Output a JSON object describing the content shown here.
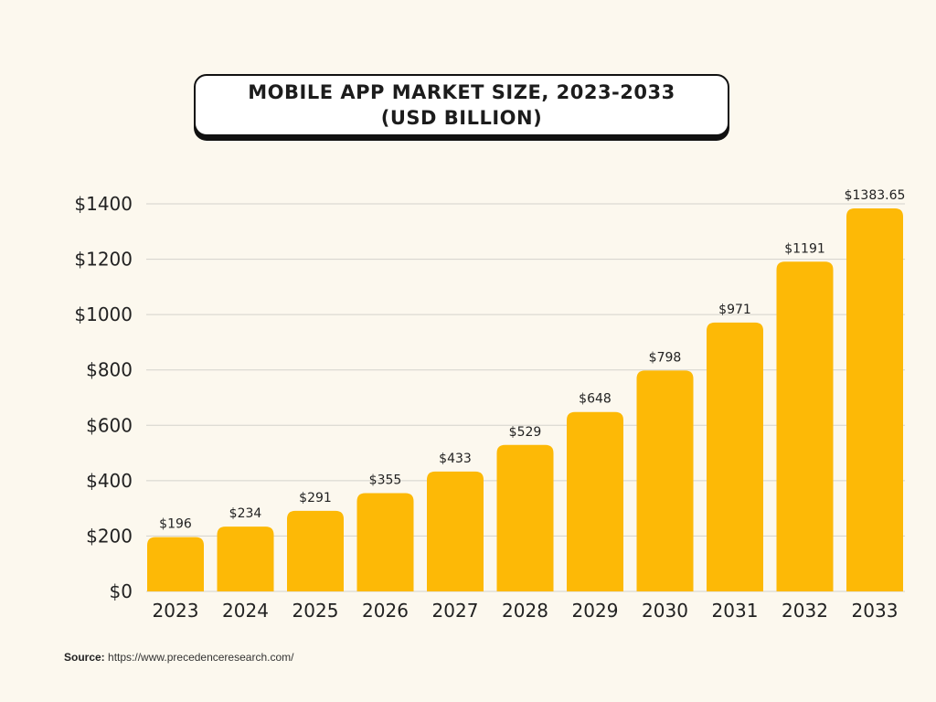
{
  "chart_data": {
    "type": "bar",
    "title": "MOBILE APP MARKET SIZE, 2023-2033\n(USD BILLION)",
    "categories": [
      "2023",
      "2024",
      "2025",
      "2026",
      "2027",
      "2028",
      "2029",
      "2030",
      "2031",
      "2032",
      "2033"
    ],
    "values": [
      196,
      234,
      291,
      355,
      433,
      529,
      648,
      798,
      971,
      1191,
      1383.65
    ],
    "data_labels": [
      "$196",
      "$234",
      "$291",
      "$355",
      "$433",
      "$529",
      "$648",
      "$798",
      "$971",
      "$1191",
      "$1383.65"
    ],
    "y_ticks": [
      0,
      200,
      400,
      600,
      800,
      1000,
      1200,
      1400
    ],
    "y_tick_labels": [
      "$0",
      "$200",
      "$400",
      "$600",
      "$800",
      "$1000",
      "$1200",
      "$1400"
    ],
    "ylim": [
      0,
      1400
    ],
    "xlabel": "",
    "ylabel": "",
    "grid": true,
    "bar_color": "#fdb906"
  },
  "source": {
    "label": "Source:",
    "url": "https://www.precedenceresearch.com/"
  }
}
